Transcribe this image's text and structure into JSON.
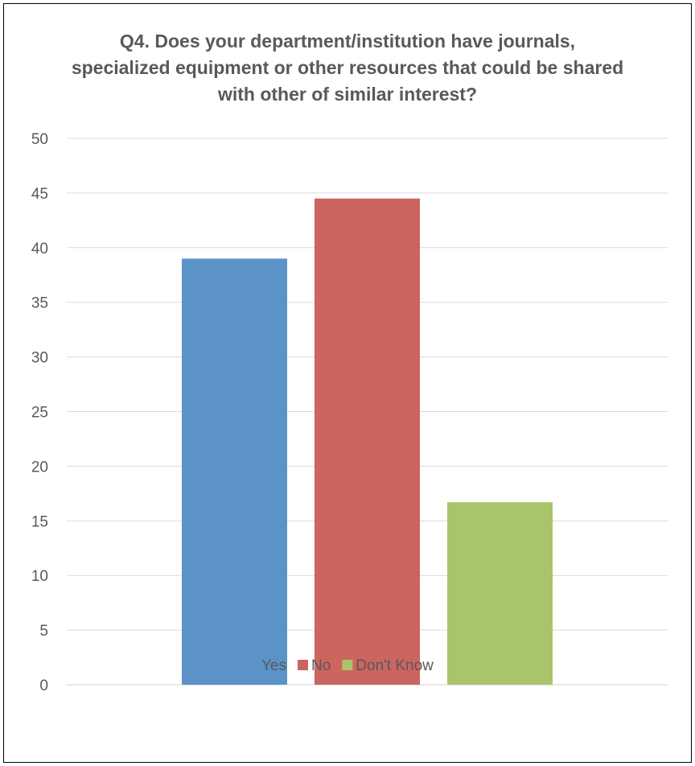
{
  "chart_data": {
    "type": "bar",
    "title": "Q4. Does your department/institution have journals, specialized equipment or other resources that could be shared with other of similar interest?",
    "categories": [
      ""
    ],
    "series": [
      {
        "name": "Yes",
        "values": [
          39
        ],
        "color": "#5b93c8"
      },
      {
        "name": "No",
        "values": [
          44.5
        ],
        "color": "#cc6560"
      },
      {
        "name": "Don't Know",
        "values": [
          16.7
        ],
        "color": "#a9c46b"
      }
    ],
    "xlabel": "",
    "ylabel": "",
    "ylim": [
      0,
      50
    ],
    "yticks": [
      "0",
      "5",
      "10",
      "15",
      "20",
      "25",
      "30",
      "35",
      "40",
      "45",
      "50"
    ],
    "grid": true,
    "legend_position": "bottom"
  }
}
